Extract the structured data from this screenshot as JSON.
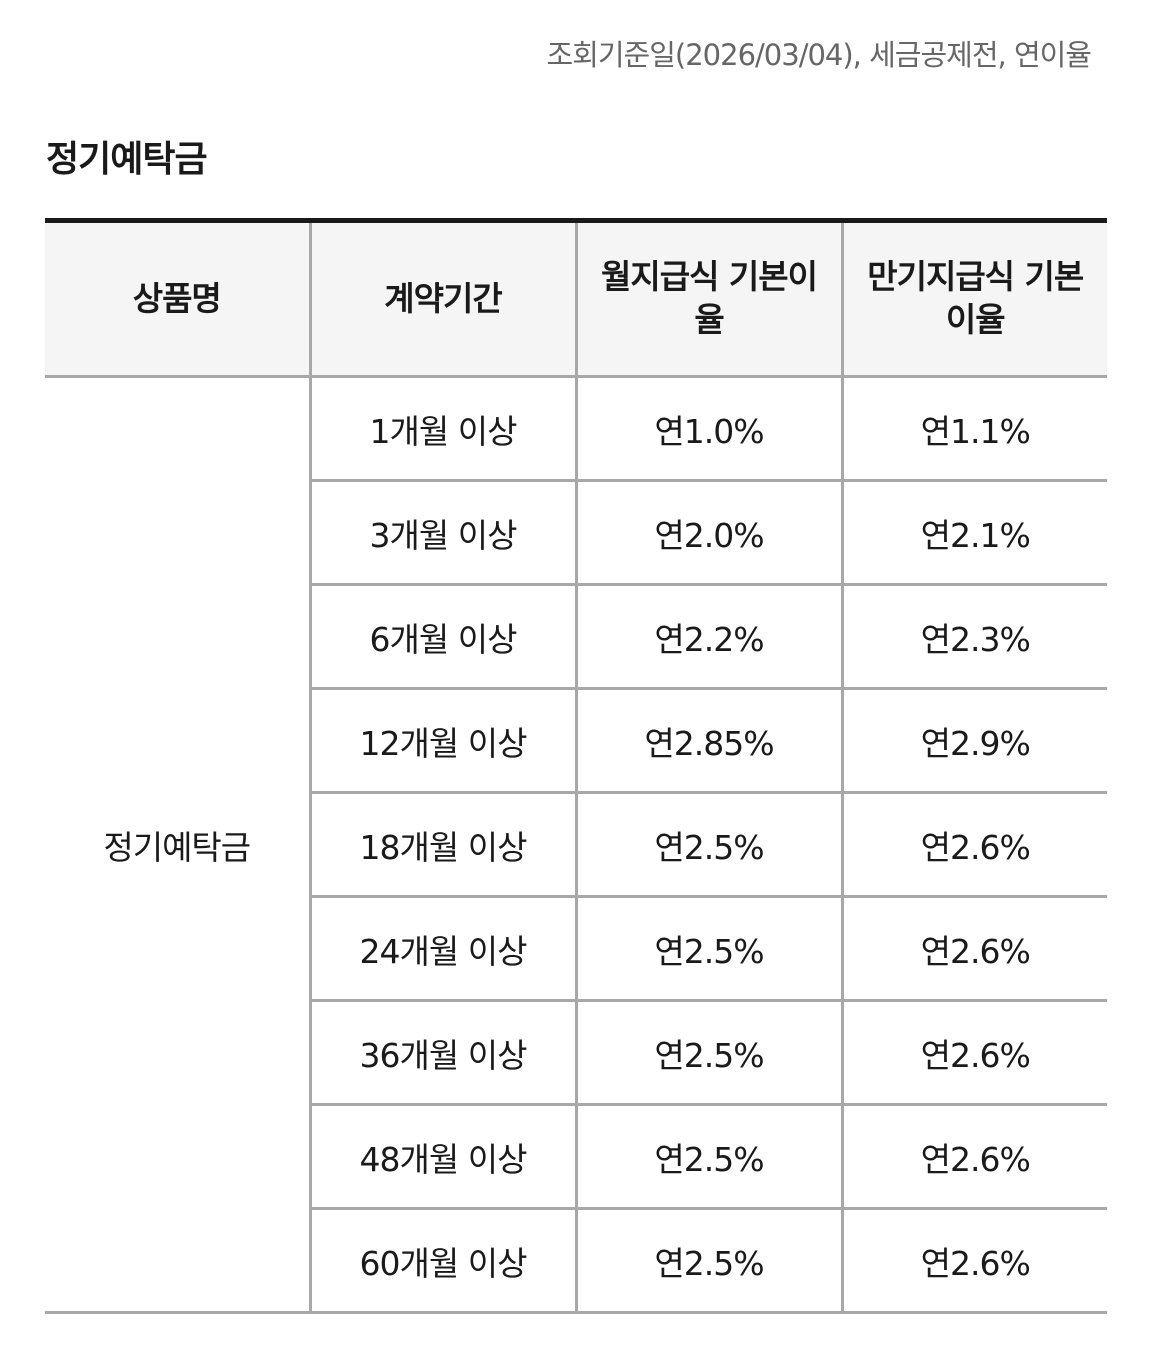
{
  "notice": "조회기준일(2026/03/04), 세금공제전, 연이율",
  "section_title": "정기예탁금",
  "table": {
    "headers": [
      "상품명",
      "계약기간",
      "월지급식 기본이율",
      "만기지급식 기본이율"
    ],
    "product_name": "정기예탁금",
    "rows": [
      {
        "term": "1개월 이상",
        "monthly": "연1.0%",
        "maturity": "연1.1%"
      },
      {
        "term": "3개월 이상",
        "monthly": "연2.0%",
        "maturity": "연2.1%"
      },
      {
        "term": "6개월 이상",
        "monthly": "연2.2%",
        "maturity": "연2.3%"
      },
      {
        "term": "12개월 이상",
        "monthly": "연2.85%",
        "maturity": "연2.9%"
      },
      {
        "term": "18개월 이상",
        "monthly": "연2.5%",
        "maturity": "연2.6%"
      },
      {
        "term": "24개월 이상",
        "monthly": "연2.5%",
        "maturity": "연2.6%"
      },
      {
        "term": "36개월 이상",
        "monthly": "연2.5%",
        "maturity": "연2.6%"
      },
      {
        "term": "48개월 이상",
        "monthly": "연2.5%",
        "maturity": "연2.6%"
      },
      {
        "term": "60개월 이상",
        "monthly": "연2.5%",
        "maturity": "연2.6%"
      }
    ]
  }
}
